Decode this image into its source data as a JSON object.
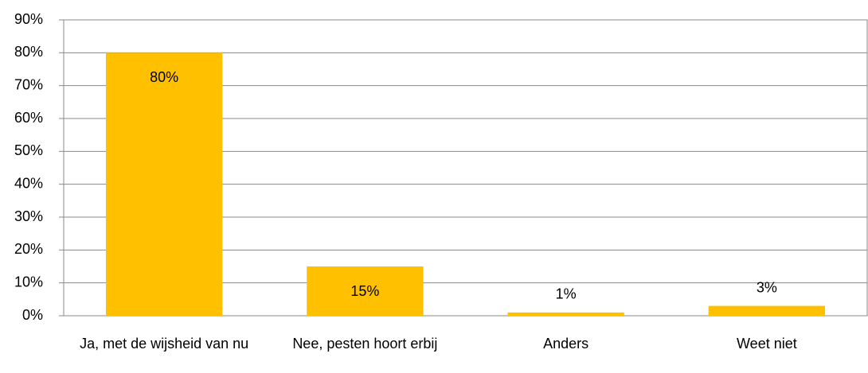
{
  "chart_data": {
    "type": "bar",
    "categories": [
      "Ja, met de wijsheid van nu",
      "Nee, pesten hoort erbij",
      "Anders",
      "Weet niet"
    ],
    "values": [
      80,
      15,
      1,
      3
    ],
    "value_labels": [
      "80%",
      "15%",
      "1%",
      "3%"
    ],
    "color": "#ffc000",
    "ylim": [
      0,
      90
    ],
    "yticks": [
      {
        "value": 0,
        "label": "0%"
      },
      {
        "value": 10,
        "label": "10%"
      },
      {
        "value": 20,
        "label": "20%"
      },
      {
        "value": 30,
        "label": "30%"
      },
      {
        "value": 40,
        "label": "40%"
      },
      {
        "value": 50,
        "label": "50%"
      },
      {
        "value": 60,
        "label": "60%"
      },
      {
        "value": 70,
        "label": "70%"
      },
      {
        "value": 80,
        "label": "80%"
      },
      {
        "value": 90,
        "label": "90%"
      }
    ],
    "grid": true
  }
}
